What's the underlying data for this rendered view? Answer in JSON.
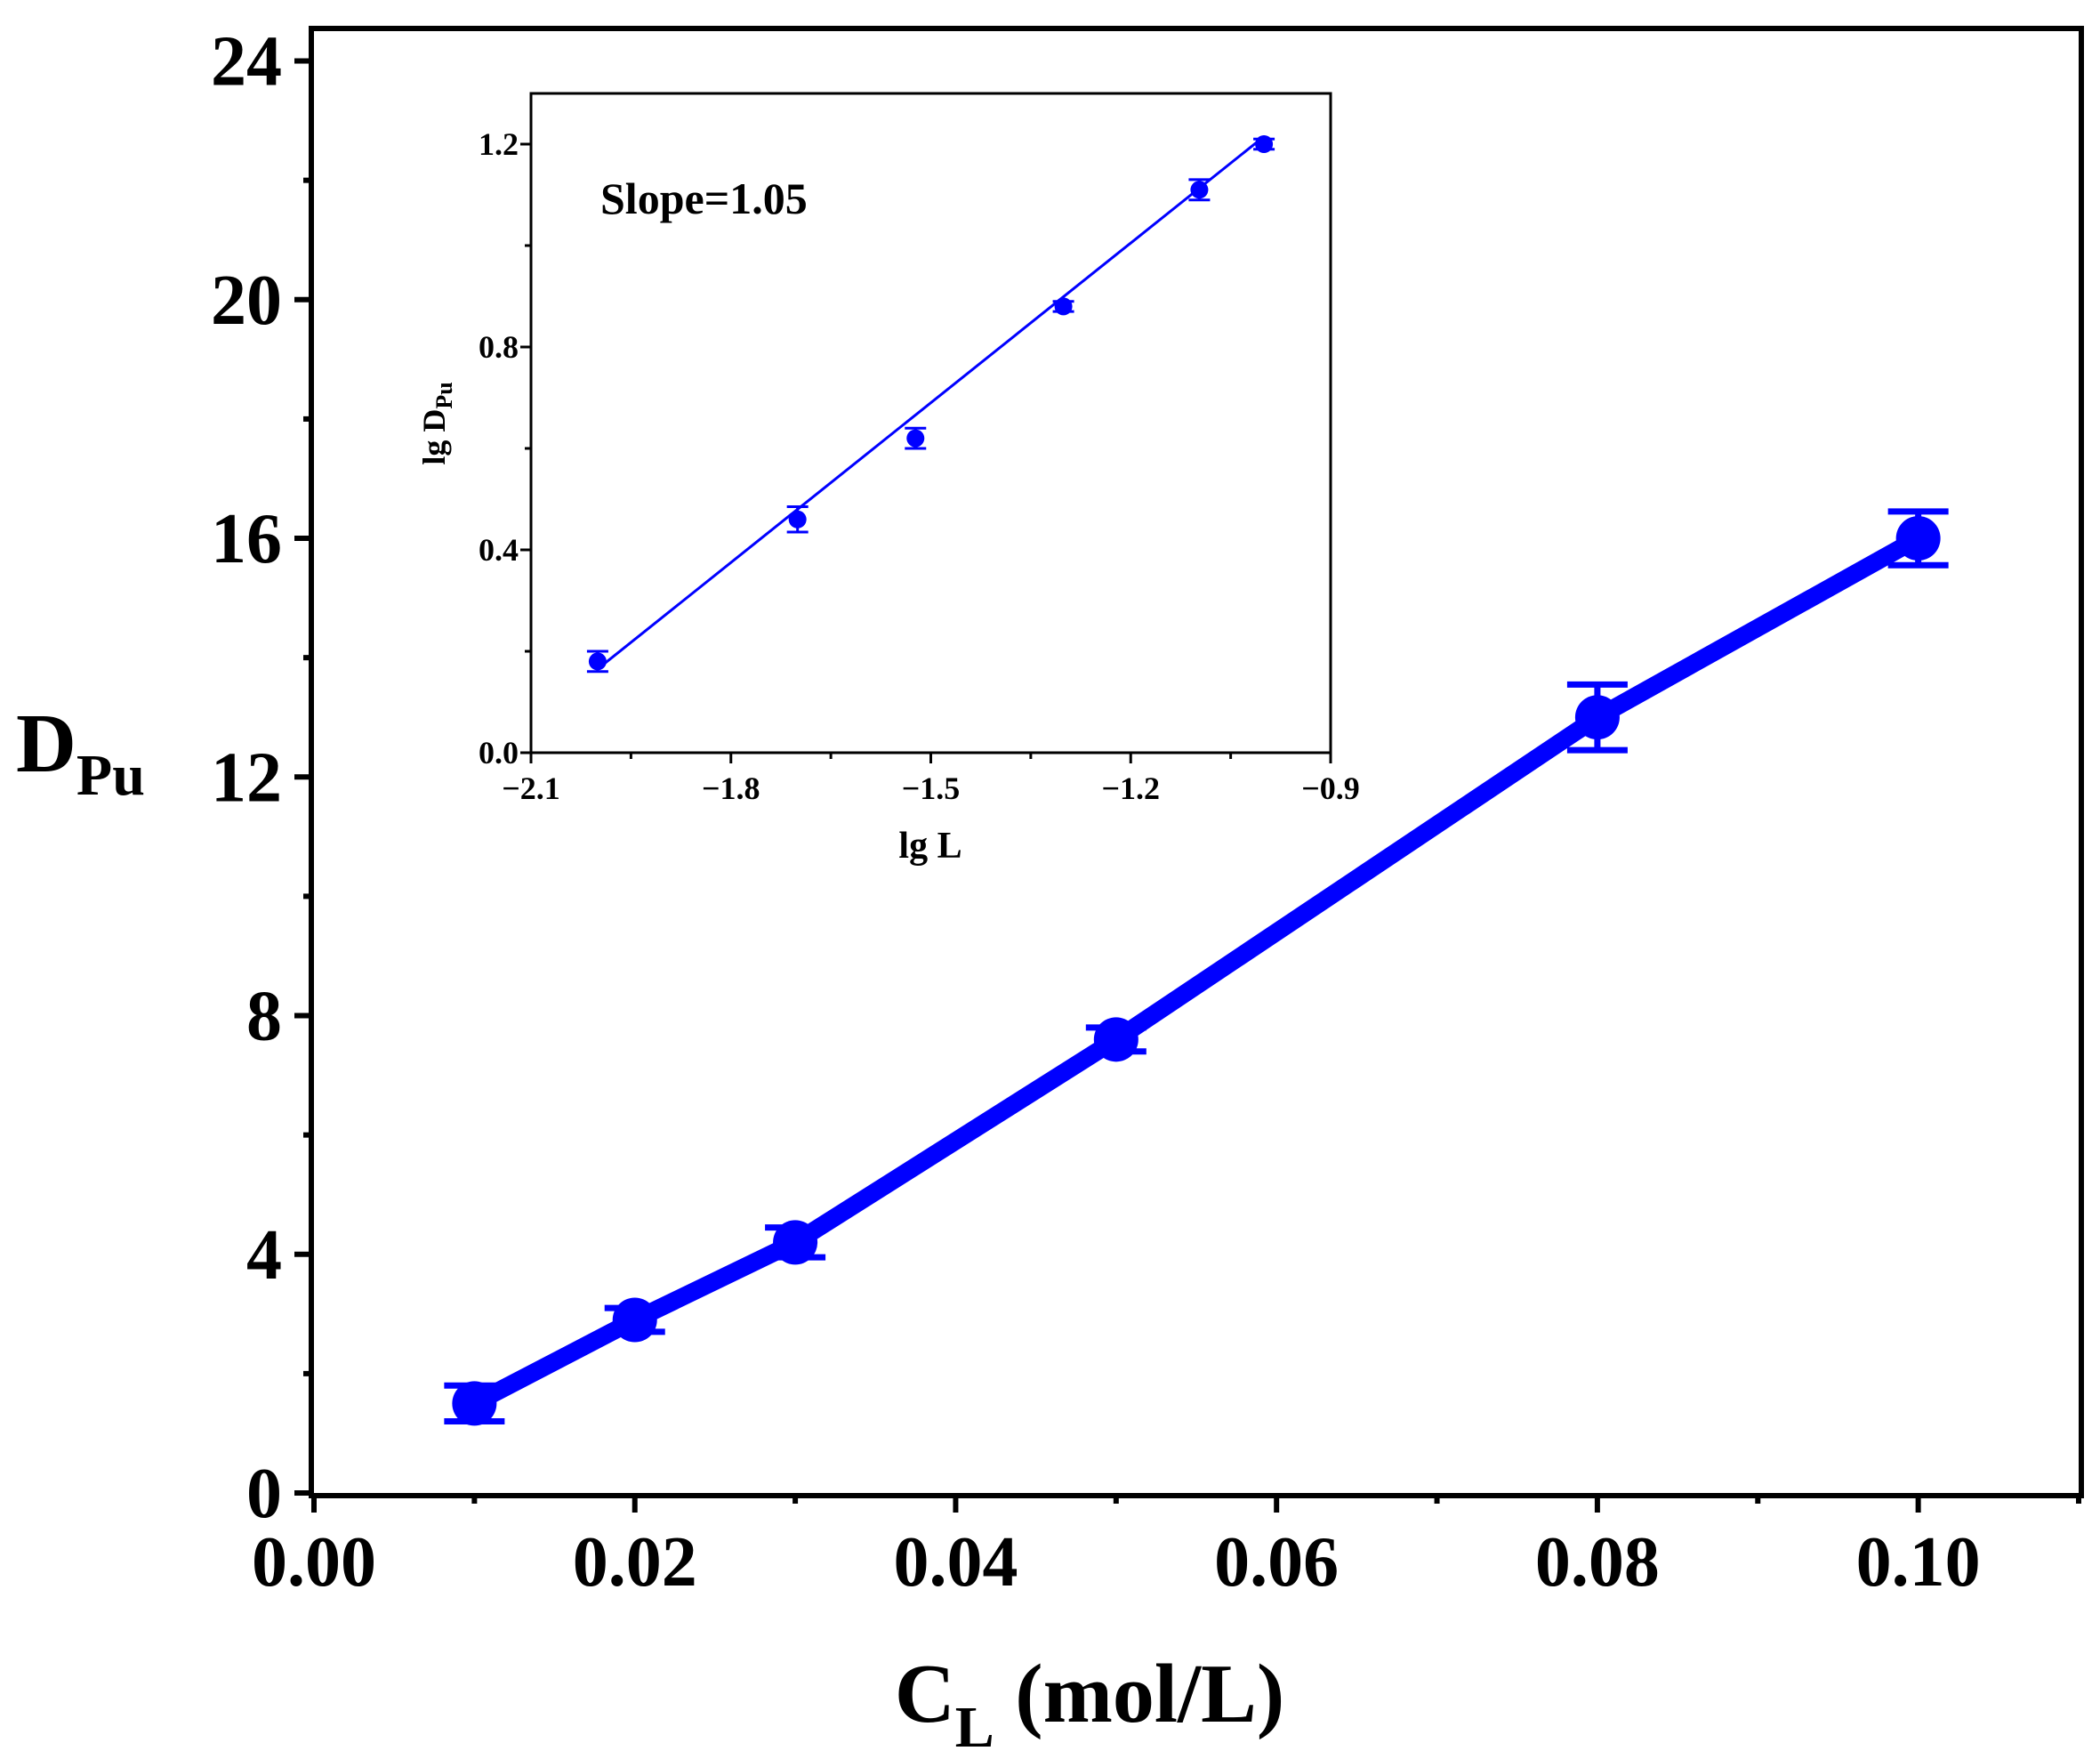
{
  "colors": {
    "series": "#0000ff",
    "axis": "#000000",
    "background": "#ffffff"
  },
  "chart_data": [
    {
      "id": "main",
      "type": "line",
      "xlabel": {
        "main": "C",
        "sub": "L",
        "tail": " (mol/L)"
      },
      "ylabel": {
        "main": "D",
        "sub": "Pu"
      },
      "xlim": [
        0,
        0.11
      ],
      "ylim": [
        0,
        24.5
      ],
      "xticks": [
        0.0,
        0.02,
        0.04,
        0.06,
        0.08,
        0.1
      ],
      "xtick_labels": [
        "0.00",
        "0.02",
        "0.04",
        "0.06",
        "0.08",
        "0.10"
      ],
      "yticks": [
        0,
        4,
        8,
        12,
        16,
        20,
        24
      ],
      "ytick_labels": [
        "0",
        "4",
        "8",
        "12",
        "16",
        "20",
        "24"
      ],
      "series": [
        {
          "name": "DPu",
          "x": [
            0.01,
            0.02,
            0.03,
            0.05,
            0.08,
            0.1
          ],
          "y": [
            1.5,
            2.9,
            4.2,
            7.6,
            13.0,
            16.0
          ],
          "err": [
            0.3,
            0.2,
            0.25,
            0.2,
            0.55,
            0.45
          ]
        }
      ]
    },
    {
      "id": "inset",
      "type": "scatter",
      "xlabel": "lg L",
      "ylabel": {
        "main": "lg D",
        "sub": "Pu"
      },
      "xlim": [
        -2.1,
        -0.9
      ],
      "ylim": [
        0,
        1.3
      ],
      "xticks": [
        -2.1,
        -1.8,
        -1.5,
        -1.2,
        -0.9
      ],
      "xtick_labels": [
        "−2.1",
        "−1.8",
        "−1.5",
        "−1.2",
        "−0.9"
      ],
      "yticks": [
        0,
        0.4,
        0.8,
        1.2
      ],
      "ytick_labels": [
        "0.0",
        "0.4",
        "0.8",
        "1.2"
      ],
      "annotation": "Slope=1.05",
      "series": [
        {
          "name": "lg DPu",
          "x": [
            -2.0,
            -1.7,
            -1.523,
            -1.301,
            -1.097,
            -1.0
          ],
          "y": [
            0.18,
            0.46,
            0.62,
            0.88,
            1.11,
            1.2
          ],
          "err": [
            0.02,
            0.025,
            0.02,
            0.01,
            0.02,
            0.01
          ]
        }
      ],
      "fit": {
        "slope": 1.05,
        "x": [
          -2.0,
          -1.0
        ],
        "y": [
          0.165,
          1.215
        ]
      }
    }
  ]
}
